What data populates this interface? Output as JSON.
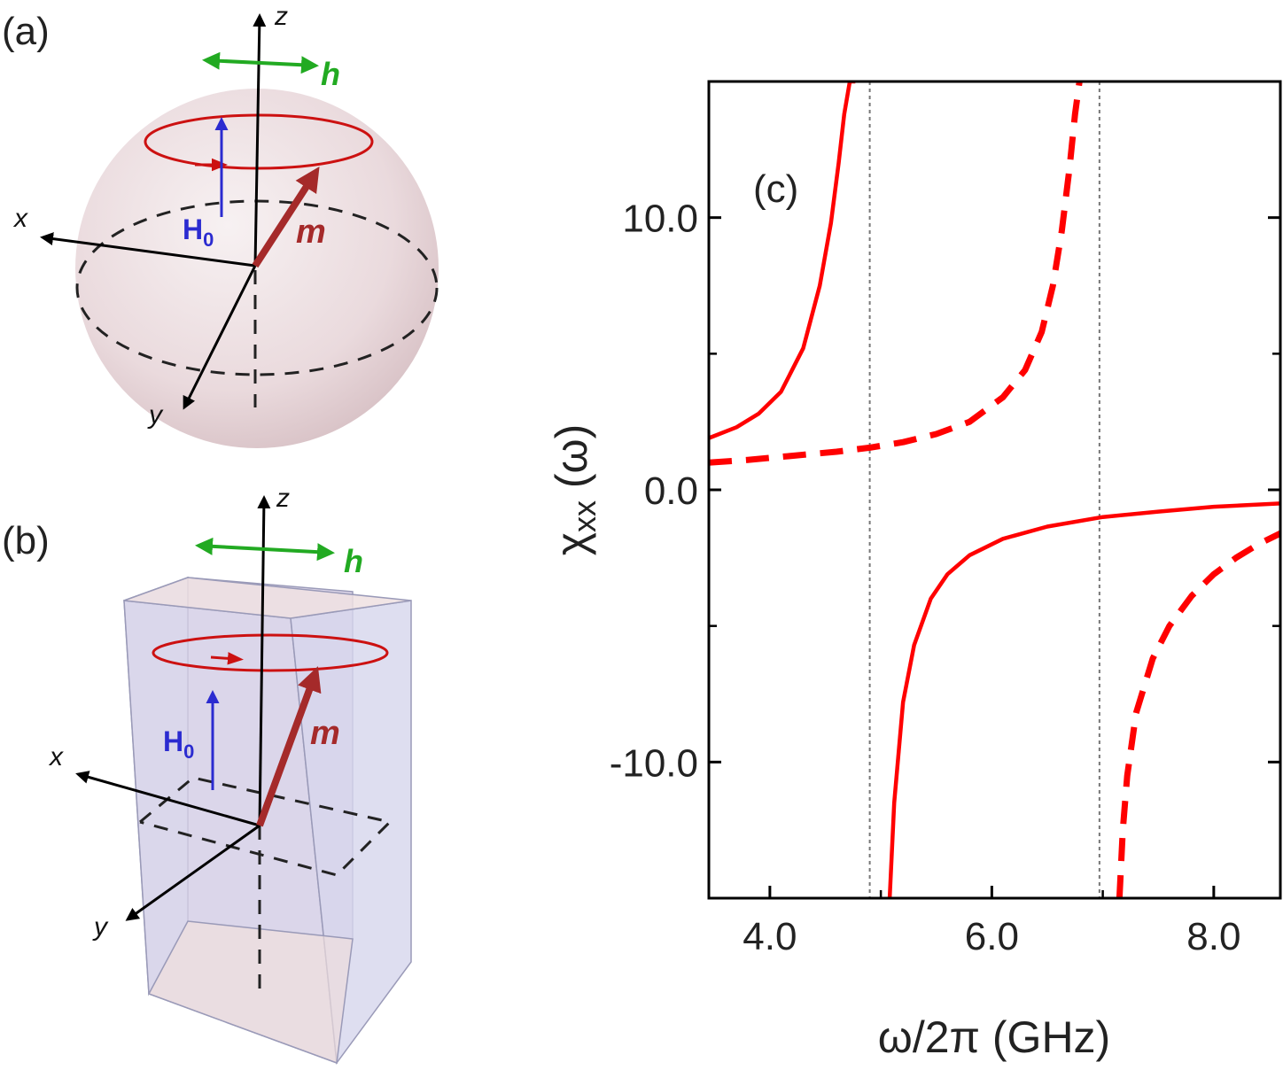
{
  "panels": {
    "a": {
      "label": "(a)",
      "axis_x": "x",
      "axis_y": "y",
      "axis_z": "z",
      "field_h": "h",
      "field_H": "H",
      "field_H_sub": "0",
      "moment": "m"
    },
    "b": {
      "label": "(b)",
      "axis_x": "x",
      "axis_y": "y",
      "axis_z": "z",
      "field_h": "h",
      "field_H": "H",
      "field_H_sub": "0",
      "moment": "m"
    }
  },
  "colors": {
    "curve": "#ff0000",
    "precession": "#cc1111",
    "moment": "#a52a2a",
    "static_field": "#2b2bd0",
    "rf_field": "#22aa22",
    "sphere": "#ecd9dd",
    "prism": "#c9c9e6"
  },
  "chart_data": {
    "type": "line",
    "panel_label": "(c)",
    "xlabel": "ω/2π (GHz)",
    "ylabel_main": "χ",
    "ylabel_sub": "xx",
    "ylabel_rest": " (ω)",
    "xlim": [
      3.45,
      8.6
    ],
    "ylim": [
      -15.0,
      15.0
    ],
    "xticks": [
      4.0,
      6.0,
      8.0
    ],
    "xtick_labels": [
      "4.0",
      "6.0",
      "8.0"
    ],
    "yticks": [
      -10.0,
      0.0,
      10.0
    ],
    "ytick_labels": [
      "-10.0",
      "0.0",
      "10.0"
    ],
    "yticks_minor": [
      -5.0,
      5.0
    ],
    "xticks_minor": [
      5.0,
      7.0
    ],
    "vertical_markers": [
      4.9,
      6.97
    ],
    "grid": false,
    "series": [
      {
        "style": "solid",
        "x": [
          3.45,
          3.7,
          3.9,
          4.1,
          4.3,
          4.45,
          4.55,
          4.62,
          4.67,
          4.72,
          4.75,
          4.77
        ],
        "y": [
          1.9,
          2.3,
          2.8,
          3.6,
          5.2,
          7.5,
          9.8,
          12.0,
          13.8,
          15.0,
          15.0,
          15.0
        ]
      },
      {
        "style": "solid",
        "x": [
          5.08,
          5.12,
          5.2,
          5.3,
          5.45,
          5.6,
          5.8,
          6.1,
          6.5,
          7.0,
          7.5,
          8.0,
          8.6
        ],
        "y": [
          -15.0,
          -11.5,
          -7.8,
          -5.7,
          -4.0,
          -3.1,
          -2.4,
          -1.8,
          -1.35,
          -1.0,
          -0.8,
          -0.62,
          -0.5
        ]
      },
      {
        "style": "dashed",
        "x": [
          3.45,
          3.8,
          4.2,
          4.6,
          4.9,
          5.2,
          5.5,
          5.8,
          6.1,
          6.3,
          6.45,
          6.55,
          6.63,
          6.7,
          6.75,
          6.79
        ],
        "y": [
          1.0,
          1.1,
          1.25,
          1.4,
          1.55,
          1.75,
          2.05,
          2.5,
          3.4,
          4.4,
          5.8,
          7.5,
          9.5,
          11.8,
          13.8,
          15.0
        ]
      },
      {
        "style": "dashed",
        "x": [
          7.15,
          7.18,
          7.22,
          7.3,
          7.45,
          7.6,
          7.8,
          8.0,
          8.2,
          8.4,
          8.6
        ],
        "y": [
          -15.0,
          -12.5,
          -10.5,
          -8.2,
          -6.2,
          -5.0,
          -3.9,
          -3.1,
          -2.5,
          -2.0,
          -1.6
        ]
      }
    ]
  }
}
